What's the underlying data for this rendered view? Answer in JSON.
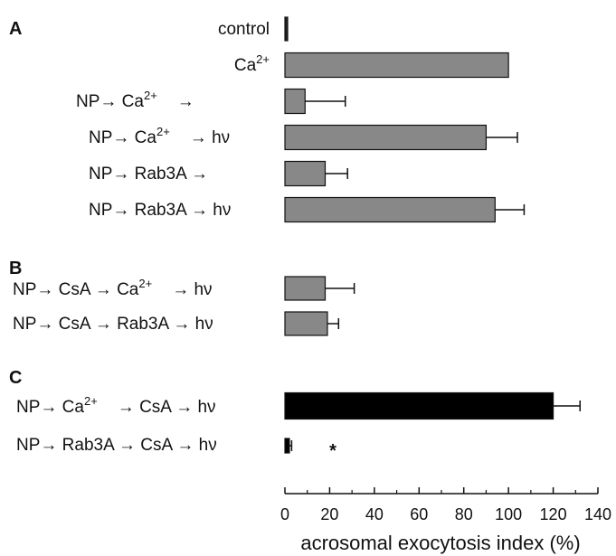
{
  "chart_data": {
    "type": "bar",
    "orientation": "horizontal",
    "xlabel": "acrosomal exocytosis index (%)",
    "xlim": [
      0,
      140
    ],
    "xticks": [
      0,
      20,
      40,
      60,
      80,
      100,
      120,
      140
    ],
    "grid": false,
    "panels": [
      {
        "label": "A",
        "bars": [
          {
            "name": "control",
            "value": 0,
            "error": 0,
            "color": "#222222"
          },
          {
            "name": "Ca2+",
            "value": 100,
            "error": 0,
            "color": "#888888"
          },
          {
            "name": "NP→Ca2+ →",
            "value": 9,
            "error": 18,
            "color": "#888888"
          },
          {
            "name": "NP→Ca2+ →hν",
            "value": 90,
            "error": 14,
            "color": "#888888"
          },
          {
            "name": "NP→Rab3A→",
            "value": 18,
            "error": 10,
            "color": "#888888"
          },
          {
            "name": "NP→Rab3A→hν",
            "value": 94,
            "error": 13,
            "color": "#888888"
          }
        ]
      },
      {
        "label": "B",
        "bars": [
          {
            "name": "NP→CsA→Ca2+ → hν",
            "value": 18,
            "error": 13,
            "color": "#888888"
          },
          {
            "name": "NP→CsA→Rab3A→ hν",
            "value": 19,
            "error": 5,
            "color": "#888888"
          }
        ]
      },
      {
        "label": "C",
        "bars": [
          {
            "name": "NP→Ca2+ →CsA→hν",
            "value": 120,
            "error": 12,
            "color": "#000000"
          },
          {
            "name": "NP→Rab3A→CsA→hν",
            "value": 2,
            "error": 1,
            "color": "#000000",
            "annotation": "*"
          }
        ]
      }
    ]
  }
}
